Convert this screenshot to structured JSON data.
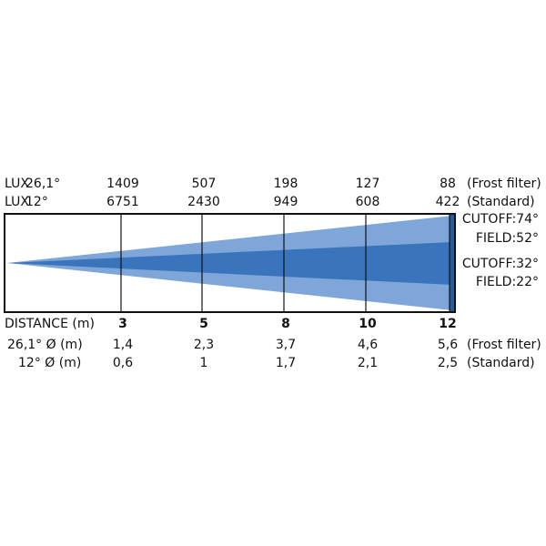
{
  "lux_rows": [
    {
      "label": "LUX",
      "angle": "26,1°",
      "values": [
        1409,
        507,
        198,
        127,
        88
      ],
      "note": "(Frost filter)"
    },
    {
      "label": "LUX",
      "angle": "12°",
      "values": [
        6751,
        2430,
        949,
        608,
        422
      ],
      "note": "(Standard)"
    }
  ],
  "distance": {
    "label": "DISTANCE (m)",
    "values": [
      3,
      5,
      8,
      10,
      12
    ]
  },
  "diameter_rows": [
    {
      "label": "26,1° Ø (m)",
      "values": [
        "1,4",
        "2,3",
        "3,7",
        "4,6",
        "5,6"
      ],
      "note": "(Frost filter)"
    },
    {
      "label": "12° Ø (m)",
      "values": [
        "0,6",
        "1",
        "1,7",
        "2,1",
        "2,5"
      ],
      "note": "(Standard)"
    }
  ],
  "beam_labels": [
    "CUTOFF:74°",
    "FIELD:52°",
    "CUTOFF:32°",
    "FIELD:22°"
  ]
}
